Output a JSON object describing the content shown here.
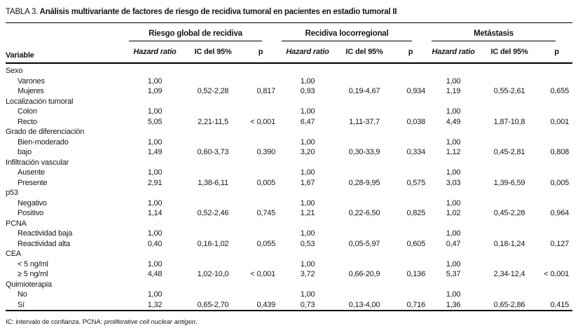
{
  "table": {
    "title_prefix": "TABLA 3.",
    "title_text": "Análisis multivariante de factores de riesgo de recidiva tumoral en pacientes en estadio tumoral II",
    "variable_header": "Variable",
    "groups": [
      "Riesgo global de recidiva",
      "Recidiva locorregional",
      "Metástasis"
    ],
    "subheaders": {
      "hazard_ratio": "Hazard ratio",
      "ci": "IC del 95%",
      "p": "p"
    },
    "sections": [
      {
        "name": "Sexo",
        "rows": [
          {
            "label": "Varones",
            "cells": [
              "1,00",
              "",
              "",
              "1,00",
              "",
              "",
              "1,00",
              "",
              ""
            ]
          },
          {
            "label": "Mujeres",
            "cells": [
              "1,09",
              "0,52-2,28",
              "0,817",
              "0,93",
              "0,19-4,67",
              "0,934",
              "1,19",
              "0,55-2,61",
              "0,655"
            ]
          }
        ]
      },
      {
        "name": "Localización tumoral",
        "rows": [
          {
            "label": "Colon",
            "cells": [
              "1,00",
              "",
              "",
              "1,00",
              "",
              "",
              "1,00",
              "",
              ""
            ]
          },
          {
            "label": "Recto",
            "cells": [
              "5,05",
              "2,21-11,5",
              "< 0,001",
              "6,47",
              "1,11-37,7",
              "0,038",
              "4,49",
              "1,87-10,8",
              "0,001"
            ]
          }
        ]
      },
      {
        "name": "Grado de diferenciación",
        "rows": [
          {
            "label": "Bien-moderado",
            "cells": [
              "1,00",
              "",
              "",
              "1,00",
              "",
              "",
              "1,00",
              "",
              ""
            ]
          },
          {
            "label": "bajo",
            "cells": [
              "1,49",
              "0,60-3,73",
              "0,390",
              "3,20",
              "0,30-33,9",
              "0,334",
              "1,12",
              "0,45-2,81",
              "0,808"
            ]
          }
        ]
      },
      {
        "name": "Infiltración vascular",
        "rows": [
          {
            "label": "Ausente",
            "cells": [
              "1,00",
              "",
              "",
              "1,00",
              "",
              "",
              "1,00",
              "",
              ""
            ]
          },
          {
            "label": "Presente",
            "cells": [
              "2,91",
              "1,38-6,11",
              "0,005",
              "1,67",
              "0,28-9,95",
              "0,575",
              "3,03",
              "1,39-6,59",
              "0,005"
            ]
          }
        ]
      },
      {
        "name": "p53",
        "rows": [
          {
            "label": "Negativo",
            "cells": [
              "1,00",
              "",
              "",
              "1,00",
              "",
              "",
              "1,00",
              "",
              ""
            ]
          },
          {
            "label": "Positivo",
            "cells": [
              "1,14",
              "0,52-2,46",
              "0,745",
              "1,21",
              "0,22-6,50",
              "0,825",
              "1,02",
              "0,45-2,28",
              "0,964"
            ]
          }
        ]
      },
      {
        "name": "PCNA",
        "rows": [
          {
            "label": "Reactividad baja",
            "cells": [
              "1,00",
              "",
              "",
              "1,00",
              "",
              "",
              "1,00",
              "",
              ""
            ]
          },
          {
            "label": "Reactividad alta",
            "cells": [
              "0,40",
              "0,16-1,02",
              "0,055",
              "0,53",
              "0,05-5,97",
              "0,605",
              "0,47",
              "0,18-1,24",
              "0,127"
            ]
          }
        ]
      },
      {
        "name": "CEA",
        "rows": [
          {
            "label": "< 5 ng/ml",
            "cells": [
              "1,00",
              "",
              "",
              "1,00",
              "",
              "",
              "1,00",
              "",
              ""
            ]
          },
          {
            "label": "≥ 5 ng/ml",
            "cells": [
              "4,48",
              "1,02-10,0",
              "< 0,001",
              "3,72",
              "0,66-20,9",
              "0,136",
              "5,37",
              "2,34-12,4",
              "< 0,001"
            ]
          }
        ]
      },
      {
        "name": "Quimioterapia",
        "rows": [
          {
            "label": "No",
            "cells": [
              "1,00",
              "",
              "",
              "1,00",
              "",
              "",
              "1,00",
              "",
              ""
            ]
          },
          {
            "label": "Sí",
            "cells": [
              "1,32",
              "0,65-2,70",
              "0,439",
              "0,73",
              "0,13-4,00",
              "0,716",
              "1,36",
              "0,65-2,86",
              "0,415"
            ]
          }
        ]
      }
    ],
    "footnote": {
      "text": "IC: intervalo de confianza. PCNA: ",
      "italic": "proliferative cell nuclear antigen",
      "suffix": "."
    }
  }
}
